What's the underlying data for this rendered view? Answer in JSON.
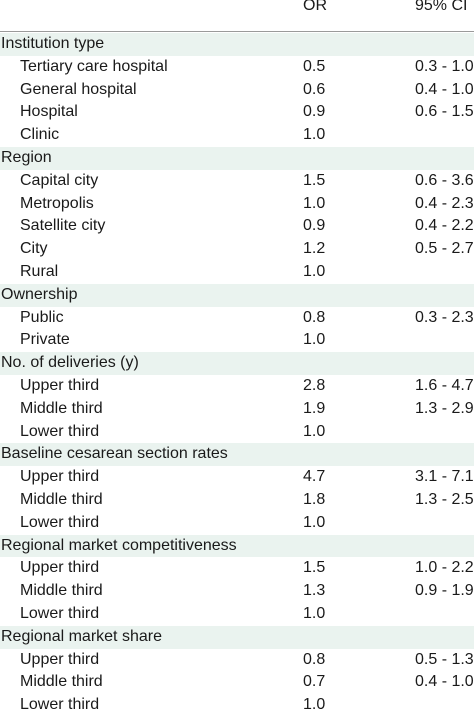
{
  "header": {
    "or": "OR",
    "ci": "95% CI"
  },
  "sections": [
    {
      "title": "Institution type",
      "rows": [
        {
          "label": "Tertiary care hospital",
          "or": "0.5",
          "ci": "0.3 - 1.0"
        },
        {
          "label": "General hospital",
          "or": "0.6",
          "ci": "0.4 - 1.0"
        },
        {
          "label": "Hospital",
          "or": "0.9",
          "ci": "0.6 - 1.5"
        },
        {
          "label": "Clinic",
          "or": "1.0",
          "ci": ""
        }
      ]
    },
    {
      "title": "Region",
      "rows": [
        {
          "label": "Capital city",
          "or": "1.5",
          "ci": "0.6 - 3.6"
        },
        {
          "label": "Metropolis",
          "or": "1.0",
          "ci": "0.4 - 2.3"
        },
        {
          "label": "Satellite city",
          "or": "0.9",
          "ci": "0.4 - 2.2"
        },
        {
          "label": "City",
          "or": "1.2",
          "ci": "0.5 - 2.7"
        },
        {
          "label": "Rural",
          "or": "1.0",
          "ci": ""
        }
      ]
    },
    {
      "title": "Ownership",
      "rows": [
        {
          "label": "Public",
          "or": "0.8",
          "ci": "0.3 - 2.3"
        },
        {
          "label": "Private",
          "or": "1.0",
          "ci": ""
        }
      ]
    },
    {
      "title": "No. of deliveries (y)",
      "rows": [
        {
          "label": "Upper third",
          "or": "2.8",
          "ci": "1.6 - 4.7"
        },
        {
          "label": "Middle third",
          "or": "1.9",
          "ci": "1.3 - 2.9"
        },
        {
          "label": "Lower third",
          "or": "1.0",
          "ci": ""
        }
      ]
    },
    {
      "title": "Baseline cesarean section rates",
      "rows": [
        {
          "label": "Upper third",
          "or": "4.7",
          "ci": "3.1 - 7.1"
        },
        {
          "label": "Middle third",
          "or": "1.8",
          "ci": "1.3 - 2.5"
        },
        {
          "label": "Lower third",
          "or": "1.0",
          "ci": ""
        }
      ]
    },
    {
      "title": "Regional market competitiveness",
      "rows": [
        {
          "label": "Upper third",
          "or": "1.5",
          "ci": "1.0 - 2.2"
        },
        {
          "label": "Middle third",
          "or": "1.3",
          "ci": "0.9 - 1.9"
        },
        {
          "label": "Lower third",
          "or": "1.0",
          "ci": ""
        }
      ]
    },
    {
      "title": "Regional market share",
      "rows": [
        {
          "label": "Upper third",
          "or": "0.8",
          "ci": "0.5 - 1.3"
        },
        {
          "label": "Middle third",
          "or": "0.7",
          "ci": "0.4 - 1.0"
        },
        {
          "label": "Lower third",
          "or": "1.0",
          "ci": ""
        }
      ]
    }
  ],
  "colors": {
    "section_band": "#eaf3ef",
    "text": "#1a1a1a",
    "rule": "#9a9a9a"
  }
}
